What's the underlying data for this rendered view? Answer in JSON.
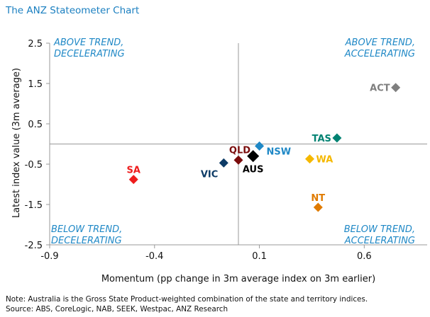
{
  "chart_data": {
    "type": "scatter",
    "title": "The ANZ Stateometer Chart",
    "xlabel": "Momentum (pp change in 3m average index on 3m earlier)",
    "ylabel": "Latest index value (3m average)",
    "xlim": [
      -0.9,
      0.9
    ],
    "ylim": [
      -2.5,
      2.5
    ],
    "x_ticks": [
      "-0.9",
      "-0.4",
      "0.1",
      "0.6"
    ],
    "y_ticks": [
      "2.5",
      "1.5",
      "0.5",
      "-0.5",
      "-1.5",
      "-2.5"
    ],
    "axes_cross_at": [
      0,
      0
    ],
    "grid": false,
    "marker": "diamond",
    "points": [
      {
        "label": "ACT",
        "x": 0.75,
        "y": 1.4,
        "color": "#7f7f7f"
      },
      {
        "label": "TAS",
        "x": 0.47,
        "y": 0.15,
        "color": "#008272"
      },
      {
        "label": "NSW",
        "x": 0.1,
        "y": -0.05,
        "color": "#1f88c6"
      },
      {
        "label": "QLD",
        "x": 0.0,
        "y": -0.4,
        "color": "#7a0c0c"
      },
      {
        "label": "AUS",
        "x": 0.07,
        "y": -0.3,
        "color": "#000000"
      },
      {
        "label": "VIC",
        "x": -0.07,
        "y": -0.47,
        "color": "#0d3b66"
      },
      {
        "label": "WA",
        "x": 0.34,
        "y": -0.37,
        "color": "#f5b800"
      },
      {
        "label": "SA",
        "x": -0.5,
        "y": -0.88,
        "color": "#ee1c1c"
      },
      {
        "label": "NT",
        "x": 0.38,
        "y": -1.57,
        "color": "#e07b00"
      }
    ],
    "annotations": [
      {
        "id": "tl",
        "lines": [
          "ABOVE TREND,",
          "DECELERATING"
        ]
      },
      {
        "id": "tr",
        "lines": [
          "ABOVE TREND,",
          "ACCELERATING"
        ]
      },
      {
        "id": "bl",
        "lines": [
          "BELOW TREND,",
          "DECELERATING"
        ]
      },
      {
        "id": "br",
        "lines": [
          "BELOW TREND,",
          "ACCELERATING"
        ]
      }
    ],
    "annotation_color": "#1f88c6"
  },
  "notes": {
    "line1": "Note: Australia is the Gross State Product-weighted combination of the state and territory indices.",
    "line2": "Source: ABS, CoreLogic, NAB, SEEK, Westpac, ANZ Research"
  }
}
